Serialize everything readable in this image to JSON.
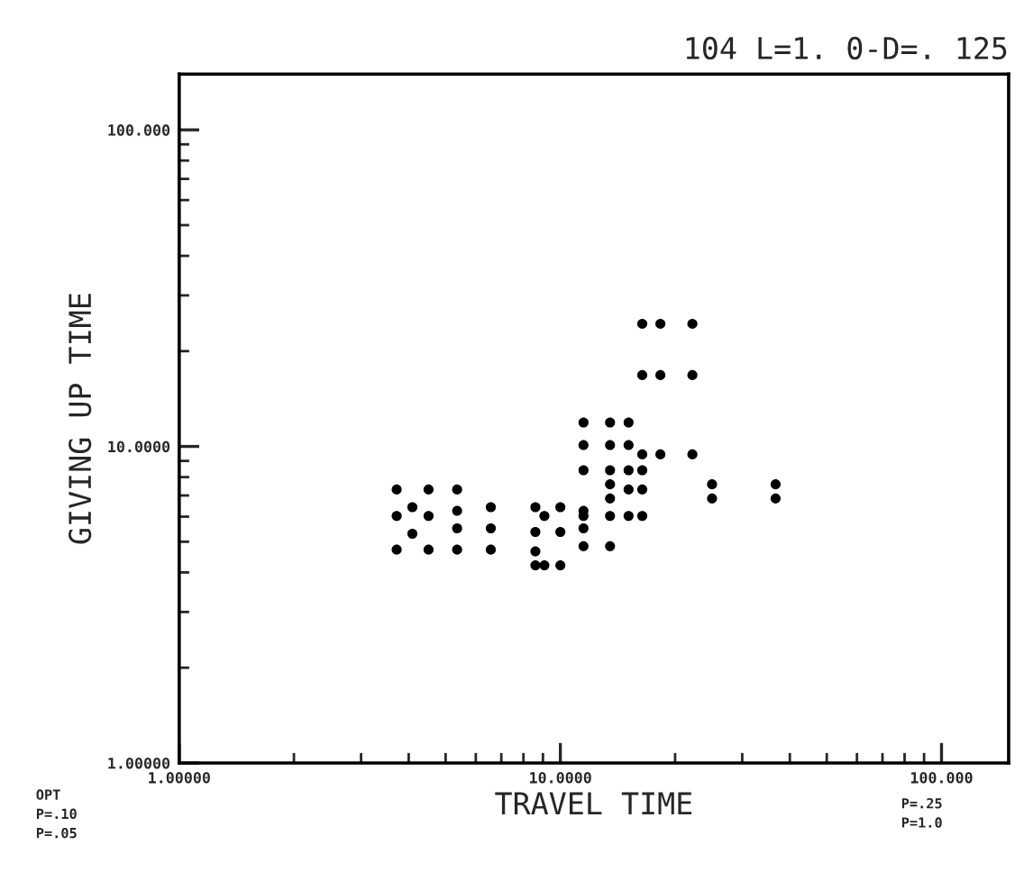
{
  "chart_data": {
    "type": "scatter",
    "title": "104 L=1. 0-D=. 125",
    "xlabel": "TRAVEL TIME",
    "ylabel": "GIVING UP TIME",
    "log": "xy",
    "xlim": [
      1,
      150
    ],
    "ylim": [
      1,
      150
    ],
    "xticks": [
      {
        "value": 1,
        "label": "1.00000"
      },
      {
        "value": 10,
        "label": "10.0000"
      },
      {
        "value": 100,
        "label": "100.000"
      }
    ],
    "yticks": [
      {
        "value": 1,
        "label": "1.00000"
      },
      {
        "value": 10,
        "label": "10.0000"
      },
      {
        "value": 100,
        "label": "100.000"
      }
    ],
    "grid": false,
    "marker": "circle",
    "annotations": [
      "OPT",
      "P=.10",
      "P=.05",
      "P=.25",
      "P=1.0"
    ],
    "series": [
      {
        "color": "#000000",
        "x": [
          3.72,
          3.72,
          3.72,
          4.09,
          4.09,
          4.51,
          4.51,
          4.51,
          5.36,
          5.36,
          5.36,
          5.36,
          6.57,
          6.57,
          6.57,
          8.6,
          8.6,
          8.6,
          8.6,
          9.08,
          9.08,
          10.0,
          10.0,
          10.0,
          11.5,
          11.5,
          11.5,
          11.5,
          13.5,
          15.1,
          11.5,
          13.5,
          15.1,
          16.4,
          18.3,
          22.2,
          16.4,
          18.3,
          22.2,
          16.4,
          18.3,
          22.2,
          11.5,
          13.5,
          13.5,
          13.5,
          15.1,
          16.4,
          13.5,
          15.1,
          16.4,
          15.1,
          16.4,
          11.5,
          13.5,
          25.0,
          25.0,
          36.7,
          36.7
        ],
        "values": [
          7.31,
          6.03,
          4.72,
          6.43,
          5.3,
          7.31,
          6.03,
          4.72,
          7.31,
          6.26,
          5.51,
          4.72,
          6.43,
          5.51,
          4.72,
          6.43,
          5.37,
          4.21,
          4.66,
          6.03,
          4.21,
          6.43,
          5.37,
          4.21,
          6.26,
          5.51,
          4.84,
          11.9,
          11.9,
          11.9,
          10.1,
          10.1,
          10.1,
          24.4,
          24.4,
          24.4,
          16.8,
          16.8,
          16.8,
          9.44,
          9.44,
          9.44,
          8.41,
          8.41,
          7.59,
          6.85,
          8.41,
          8.41,
          6.03,
          6.03,
          6.03,
          7.31,
          7.31,
          6.03,
          4.84,
          7.59,
          6.85,
          7.59,
          6.85
        ]
      }
    ]
  }
}
